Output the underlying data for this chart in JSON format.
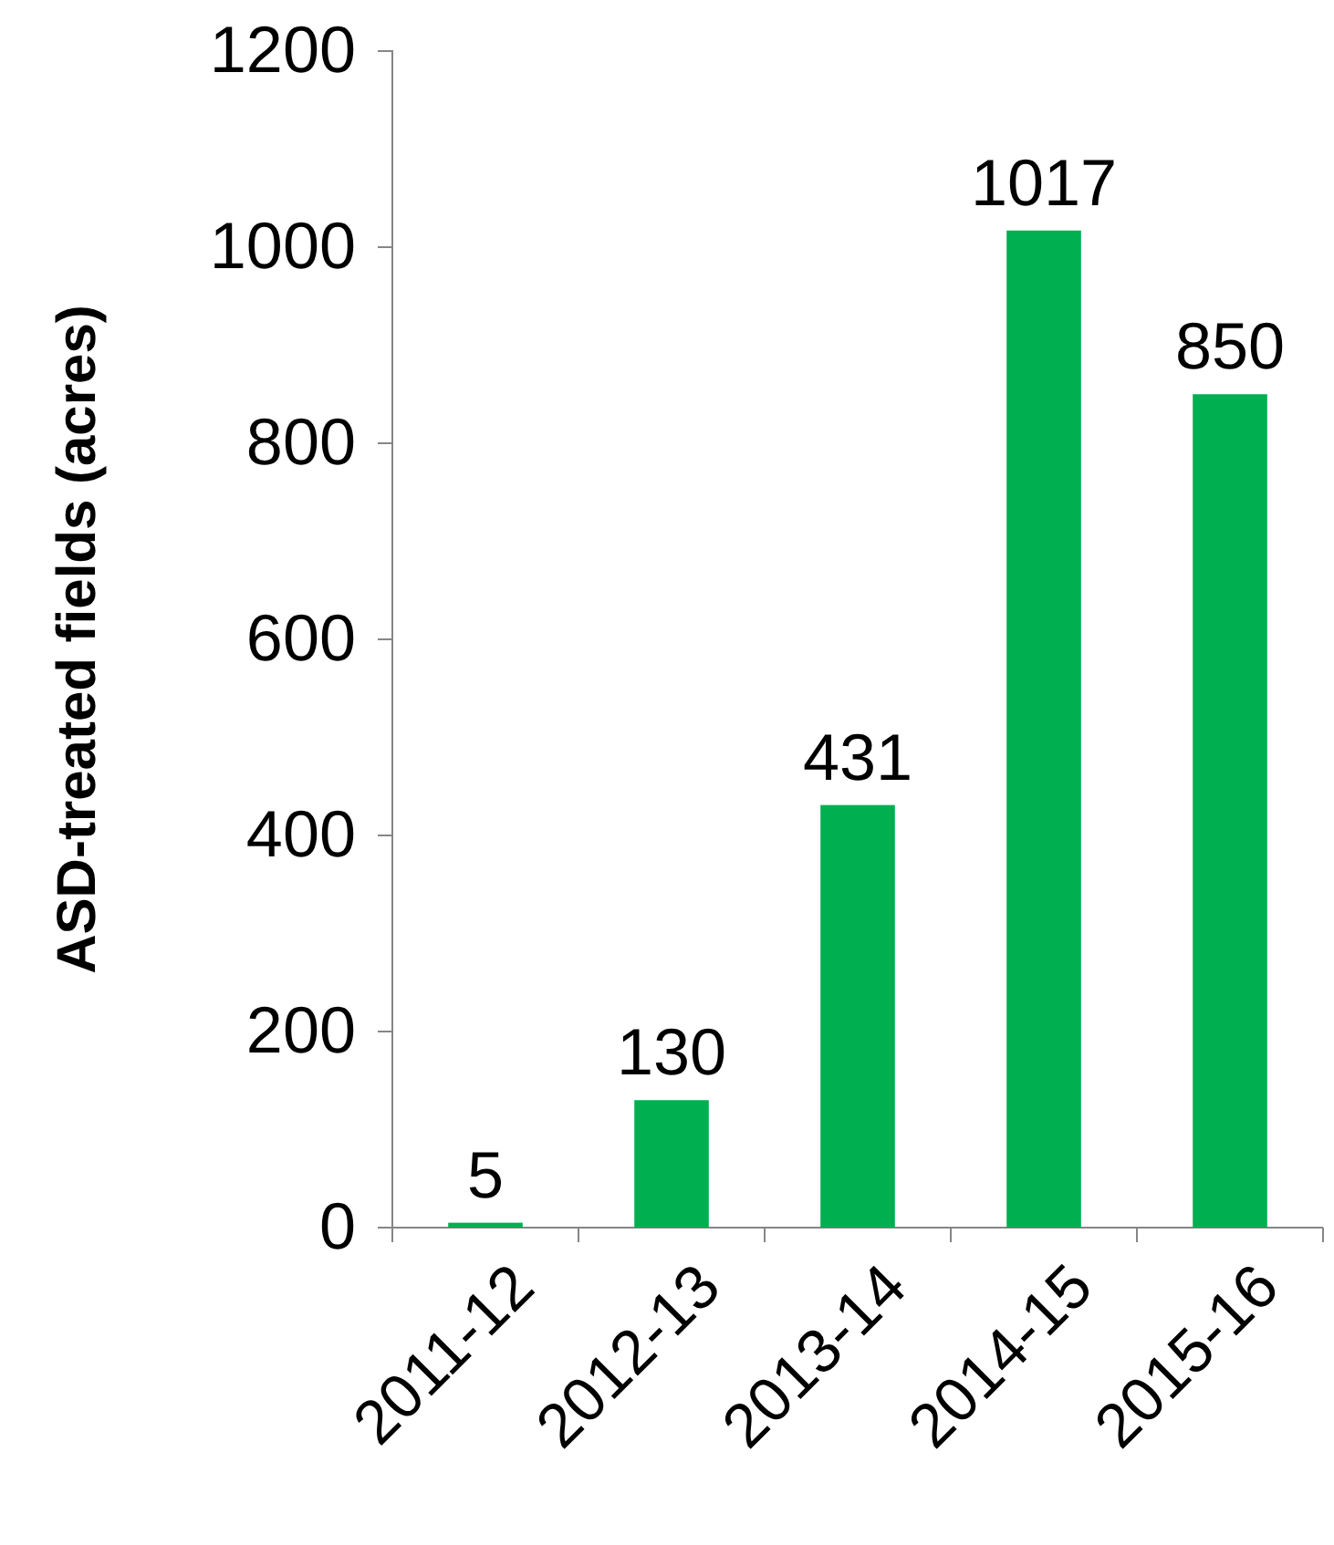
{
  "chart_data": {
    "type": "bar",
    "ylabel": "ASD-treated fields (acres)",
    "categories": [
      "2011-12",
      "2012-13",
      "2013-14",
      "2014-15",
      "2015-16"
    ],
    "values": [
      5,
      130,
      431,
      1017,
      850
    ],
    "color": "#00b050",
    "ylim": [
      0,
      1200
    ],
    "yticks": [
      0,
      200,
      400,
      600,
      800,
      1000,
      1200
    ],
    "data_labels": true,
    "grid": false
  }
}
